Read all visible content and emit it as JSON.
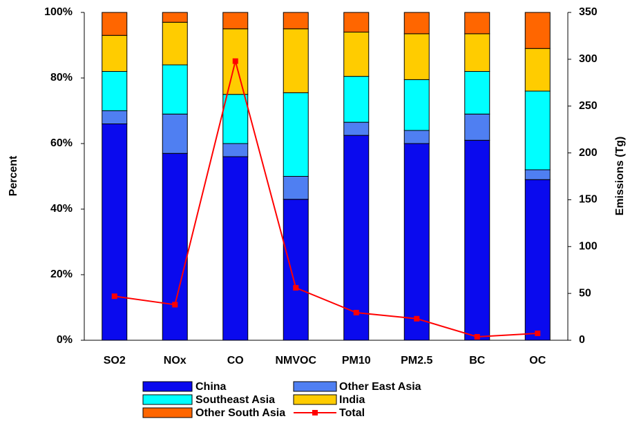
{
  "chart_data": {
    "type": "bar",
    "stacked": true,
    "categories": [
      "SO2",
      "NOx",
      "CO",
      "NMVOC",
      "PM10",
      "PM2.5",
      "BC",
      "OC"
    ],
    "series": [
      {
        "name": "China",
        "color": "#0a0aee",
        "values": [
          66,
          57,
          56,
          43,
          62.5,
          60,
          61,
          49
        ]
      },
      {
        "name": "Other East Asia",
        "color": "#4f7ff2",
        "values": [
          4,
          12,
          4,
          7,
          4,
          4,
          8,
          3
        ]
      },
      {
        "name": "Southeast Asia",
        "color": "#00ffff",
        "values": [
          12,
          15,
          15,
          25.5,
          14,
          15.5,
          13,
          24
        ]
      },
      {
        "name": "India",
        "color": "#ffcc00",
        "values": [
          11,
          13,
          20,
          19.5,
          13.5,
          14,
          11.5,
          13
        ]
      },
      {
        "name": "Other South Asia",
        "color": "#ff6600",
        "values": [
          7,
          3,
          5,
          5,
          6,
          6.5,
          6.5,
          11
        ]
      },
      {
        "name": "Total",
        "color": "#ff0000",
        "type": "line",
        "axis": "y2",
        "values": [
          47,
          38,
          298,
          56,
          29.5,
          23,
          3.7,
          7.4
        ]
      }
    ],
    "y_label": "Percent",
    "y2_label": "Emissions (Tg)",
    "ylim": [
      0,
      100
    ],
    "yticks": [
      {
        "value": 0,
        "label": "0%"
      },
      {
        "value": 20,
        "label": "20%"
      },
      {
        "value": 40,
        "label": "40%"
      },
      {
        "value": 60,
        "label": "60%"
      },
      {
        "value": 80,
        "label": "80%"
      },
      {
        "value": 100,
        "label": "100%"
      }
    ],
    "y2lim": [
      0,
      350
    ],
    "y2ticks": [
      0,
      50,
      100,
      150,
      200,
      250,
      300,
      350
    ],
    "grid": false
  }
}
